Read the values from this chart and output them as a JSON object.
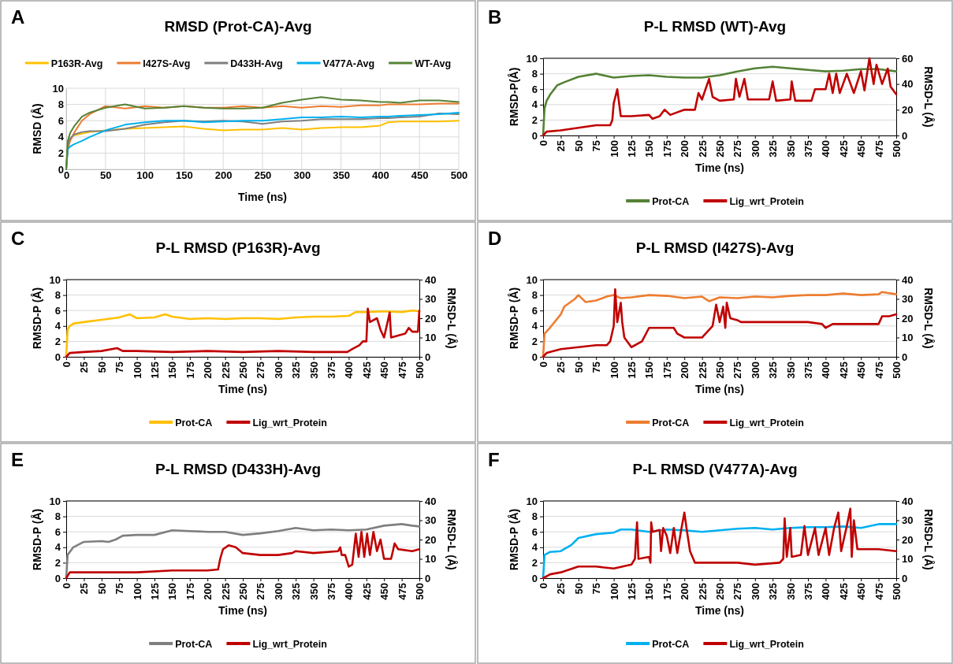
{
  "chart_data": [
    {
      "type": "line",
      "title": "RMSD (Prot-CA)-Avg",
      "xlabel": "Time (ns)",
      "ylabel": "RMSD (Å)",
      "annotations": [
        "A"
      ],
      "xlim": [
        0,
        500
      ],
      "xticks": [
        0,
        50,
        100,
        150,
        200,
        250,
        300,
        350,
        400,
        450,
        500
      ],
      "ylim": [
        0,
        10
      ],
      "yticks": [
        0,
        2,
        4,
        6,
        8,
        10
      ],
      "grid": true,
      "legend": "top",
      "series": [
        {
          "name": "P163R-Avg",
          "color": "#ffc000",
          "x": [
            0,
            2,
            5,
            10,
            20,
            30,
            50,
            75,
            100,
            125,
            150,
            175,
            200,
            225,
            250,
            275,
            300,
            325,
            350,
            375,
            400,
            410,
            425,
            450,
            475,
            500
          ],
          "values": [
            0,
            3,
            3.8,
            4.2,
            4.4,
            4.6,
            4.8,
            5.0,
            5.1,
            5.2,
            5.3,
            5.0,
            4.8,
            4.9,
            4.9,
            5.1,
            4.9,
            5.1,
            5.2,
            5.2,
            5.4,
            5.8,
            5.9,
            5.9,
            5.9,
            6.0
          ]
        },
        {
          "name": "I427S-Avg",
          "color": "#ed7d31",
          "x": [
            0,
            2,
            5,
            10,
            20,
            30,
            50,
            75,
            100,
            125,
            150,
            175,
            200,
            225,
            250,
            275,
            300,
            325,
            350,
            375,
            400,
            410,
            425,
            450,
            475,
            500
          ],
          "values": [
            0,
            2.5,
            3.5,
            4.5,
            6,
            6.8,
            7.8,
            7.5,
            7.8,
            7.6,
            7.8,
            7.6,
            7.6,
            7.8,
            7.6,
            7.8,
            7.6,
            7.8,
            7.7,
            7.9,
            7.9,
            8.0,
            8.0,
            8.0,
            8.1,
            8.1
          ]
        },
        {
          "name": "D433H-Avg",
          "color": "#7f7f7f",
          "x": [
            0,
            2,
            5,
            10,
            20,
            30,
            50,
            75,
            100,
            125,
            150,
            175,
            200,
            225,
            250,
            275,
            300,
            325,
            350,
            375,
            400,
            410,
            425,
            450,
            475,
            500
          ],
          "values": [
            0,
            3,
            3.8,
            4.3,
            4.6,
            4.7,
            4.7,
            5.0,
            5.5,
            5.8,
            6.0,
            5.9,
            6.0,
            5.9,
            5.6,
            5.9,
            6.0,
            6.2,
            6.2,
            6.2,
            6.3,
            6.3,
            6.4,
            6.5,
            6.9,
            6.8
          ]
        },
        {
          "name": "V477A-Avg",
          "color": "#00b0f0",
          "x": [
            0,
            2,
            5,
            10,
            20,
            30,
            50,
            75,
            100,
            125,
            150,
            175,
            200,
            225,
            250,
            275,
            300,
            325,
            350,
            375,
            400,
            410,
            425,
            450,
            475,
            500
          ],
          "values": [
            0,
            2.5,
            2.8,
            3.1,
            3.5,
            4.0,
            4.8,
            5.5,
            5.8,
            6.0,
            6.0,
            5.8,
            5.9,
            6.0,
            6.0,
            6.2,
            6.4,
            6.4,
            6.5,
            6.4,
            6.5,
            6.5,
            6.6,
            6.7,
            6.8,
            7.0
          ]
        },
        {
          "name": "WT-Avg",
          "color": "#548235",
          "x": [
            0,
            2,
            5,
            10,
            20,
            30,
            50,
            75,
            100,
            125,
            150,
            175,
            200,
            225,
            250,
            275,
            300,
            325,
            350,
            375,
            400,
            410,
            425,
            450,
            475,
            500
          ],
          "values": [
            0,
            3.5,
            4.5,
            5.3,
            6.5,
            7.0,
            7.6,
            8.0,
            7.5,
            7.6,
            7.8,
            7.6,
            7.5,
            7.5,
            7.6,
            8.2,
            8.6,
            8.9,
            8.6,
            8.5,
            8.3,
            8.3,
            8.2,
            8.5,
            8.5,
            8.3
          ]
        }
      ]
    },
    {
      "type": "line",
      "title": "P-L RMSD (WT)-Avg",
      "xlabel": "Time (ns)",
      "ylabel": "RMSD-P(Å)",
      "y2label": "RMSD-L (Å)",
      "annotations": [
        "B"
      ],
      "xlim": [
        0,
        500
      ],
      "xticks": [
        0,
        25,
        50,
        75,
        100,
        125,
        150,
        175,
        200,
        225,
        250,
        275,
        300,
        325,
        350,
        375,
        400,
        425,
        450,
        475,
        500
      ],
      "ylim": [
        0,
        10
      ],
      "yticks": [
        0,
        2,
        4,
        6,
        8,
        10
      ],
      "y2lim": [
        0,
        60
      ],
      "y2ticks": [
        0,
        20,
        40,
        60
      ],
      "grid": "y",
      "legend": "bottom",
      "series": [
        {
          "name": "Prot-CA",
          "color": "#548235",
          "x": [
            0,
            2,
            5,
            10,
            20,
            30,
            50,
            75,
            100,
            125,
            150,
            175,
            200,
            225,
            250,
            275,
            300,
            325,
            350,
            375,
            400,
            425,
            450,
            475,
            500
          ],
          "values": [
            0,
            3.5,
            4.5,
            5.3,
            6.5,
            6.9,
            7.6,
            8.0,
            7.5,
            7.7,
            7.8,
            7.6,
            7.5,
            7.5,
            7.8,
            8.3,
            8.7,
            8.9,
            8.7,
            8.5,
            8.3,
            8.4,
            8.6,
            8.6,
            8.3
          ]
        },
        {
          "name": "Lig_wrt_Protein",
          "color": "#c00000",
          "axis": "y2",
          "x": [
            0,
            5,
            25,
            50,
            75,
            95,
            98,
            100,
            105,
            110,
            125,
            150,
            155,
            165,
            172,
            180,
            200,
            215,
            220,
            225,
            235,
            240,
            250,
            270,
            273,
            278,
            285,
            290,
            320,
            325,
            330,
            350,
            352,
            357,
            380,
            385,
            400,
            405,
            410,
            415,
            420,
            430,
            440,
            450,
            455,
            462,
            468,
            472,
            480,
            488,
            492,
            500
          ],
          "values": [
            0,
            3,
            4,
            6,
            8,
            8,
            12,
            25,
            36,
            15,
            15,
            16,
            13,
            15,
            20,
            16,
            20,
            20,
            33,
            28,
            44,
            30,
            27,
            28,
            44,
            30,
            44,
            28,
            28,
            42,
            27,
            28,
            42,
            27,
            27,
            36,
            36,
            48,
            33,
            48,
            33,
            48,
            33,
            50,
            35,
            60,
            40,
            55,
            40,
            52,
            38,
            32
          ]
        }
      ]
    },
    {
      "type": "line",
      "title": "P-L RMSD (P163R)-Avg",
      "xlabel": "Time (ns)",
      "ylabel": "RMSD-P (Å)",
      "y2label": "RMSD-L (Å)",
      "annotations": [
        "C"
      ],
      "xlim": [
        0,
        500
      ],
      "xticks": [
        0,
        25,
        50,
        75,
        100,
        125,
        150,
        175,
        200,
        225,
        250,
        275,
        300,
        325,
        350,
        375,
        400,
        425,
        450,
        475,
        500
      ],
      "ylim": [
        0,
        10
      ],
      "yticks": [
        0,
        2,
        4,
        6,
        8,
        10
      ],
      "y2lim": [
        0,
        40
      ],
      "y2ticks": [
        0,
        10,
        20,
        30,
        40
      ],
      "grid": "y",
      "legend": "bottom",
      "series": [
        {
          "name": "Prot-CA",
          "color": "#ffc000",
          "x": [
            0,
            2,
            5,
            10,
            25,
            50,
            75,
            90,
            100,
            125,
            140,
            150,
            175,
            200,
            225,
            250,
            275,
            300,
            325,
            350,
            375,
            400,
            410,
            425,
            450,
            475,
            490,
            500
          ],
          "values": [
            0,
            3.5,
            4.0,
            4.3,
            4.5,
            4.8,
            5.1,
            5.5,
            5.0,
            5.1,
            5.5,
            5.2,
            4.9,
            5.0,
            4.9,
            5.0,
            5.0,
            4.9,
            5.1,
            5.2,
            5.2,
            5.3,
            5.8,
            5.8,
            5.9,
            5.8,
            6.0,
            5.9
          ]
        },
        {
          "name": "Lig_wrt_Protein",
          "color": "#c00000",
          "axis": "y2",
          "x": [
            0,
            5,
            25,
            50,
            72,
            80,
            100,
            150,
            200,
            250,
            300,
            350,
            398,
            405,
            415,
            420,
            425,
            427,
            430,
            440,
            445,
            450,
            455,
            458,
            460,
            470,
            480,
            485,
            490,
            498,
            500
          ],
          "values": [
            0,
            2,
            2.5,
            3,
            4.5,
            3,
            3,
            2.5,
            3,
            2.5,
            3,
            2.5,
            2.5,
            4,
            6,
            8,
            8,
            25,
            18,
            20,
            14,
            10,
            18,
            23,
            10,
            11,
            12,
            15,
            13,
            13,
            24
          ]
        }
      ]
    },
    {
      "type": "line",
      "title": "P-L RMSD (I427S)-Avg",
      "xlabel": "Time (ns)",
      "ylabel": "RMSD-P (Å)",
      "y2label": "RMSD-L (Å)",
      "annotations": [
        "D"
      ],
      "xlim": [
        0,
        500
      ],
      "xticks": [
        0,
        25,
        50,
        75,
        100,
        125,
        150,
        175,
        200,
        225,
        250,
        275,
        300,
        325,
        350,
        375,
        400,
        425,
        450,
        475,
        500
      ],
      "ylim": [
        0,
        10
      ],
      "yticks": [
        0,
        2,
        4,
        6,
        8,
        10
      ],
      "y2lim": [
        0,
        40
      ],
      "y2ticks": [
        0,
        10,
        20,
        30,
        40
      ],
      "grid": "y",
      "legend": "bottom",
      "series": [
        {
          "name": "Prot-CA",
          "color": "#ed7d31",
          "x": [
            0,
            2,
            10,
            25,
            30,
            45,
            50,
            60,
            75,
            90,
            100,
            110,
            125,
            150,
            175,
            200,
            225,
            235,
            250,
            275,
            300,
            325,
            350,
            375,
            400,
            425,
            450,
            475,
            480,
            500
          ],
          "values": [
            0,
            3,
            3.8,
            5.5,
            6.5,
            7.5,
            8.0,
            7.1,
            7.3,
            7.8,
            8.0,
            7.6,
            7.7,
            8.0,
            7.9,
            7.6,
            7.8,
            7.2,
            7.7,
            7.6,
            7.8,
            7.7,
            7.9,
            8.0,
            8.0,
            8.2,
            8.0,
            8.1,
            8.4,
            8.1
          ]
        },
        {
          "name": "Lig_wrt_Protein",
          "color": "#c00000",
          "axis": "y2",
          "x": [
            0,
            5,
            25,
            50,
            75,
            90,
            95,
            100,
            102,
            105,
            110,
            112,
            115,
            125,
            140,
            150,
            175,
            185,
            190,
            200,
            225,
            230,
            240,
            245,
            250,
            255,
            258,
            260,
            265,
            275,
            280,
            300,
            350,
            375,
            395,
            400,
            410,
            450,
            475,
            480,
            490,
            500
          ],
          "values": [
            0,
            2,
            4,
            5,
            6,
            6,
            8,
            16,
            35,
            18,
            28,
            18,
            10,
            5,
            8,
            15,
            15,
            15,
            12,
            10,
            10,
            12,
            16,
            27,
            18,
            26,
            15,
            28,
            20,
            19,
            18,
            18,
            18,
            18,
            17,
            15,
            17,
            17,
            17,
            21,
            21,
            22
          ]
        }
      ]
    },
    {
      "type": "line",
      "title": "P-L RMSD (D433H)-Avg",
      "xlabel": "Time (ns)",
      "ylabel": "RMSD-P (Å)",
      "y2label": "RMSD-L (Å)",
      "annotations": [
        "E"
      ],
      "xlim": [
        0,
        500
      ],
      "xticks": [
        0,
        25,
        50,
        75,
        100,
        125,
        150,
        175,
        200,
        225,
        250,
        275,
        300,
        325,
        350,
        375,
        400,
        425,
        450,
        475,
        500
      ],
      "ylim": [
        0,
        10
      ],
      "yticks": [
        0,
        2,
        4,
        6,
        8,
        10
      ],
      "y2lim": [
        0,
        40
      ],
      "y2ticks": [
        0,
        10,
        20,
        30,
        40
      ],
      "grid": "y",
      "legend": "bottom",
      "series": [
        {
          "name": "Prot-CA",
          "color": "#7f7f7f",
          "x": [
            0,
            2,
            10,
            25,
            50,
            60,
            70,
            80,
            100,
            125,
            150,
            175,
            200,
            225,
            250,
            275,
            300,
            325,
            350,
            375,
            400,
            425,
            450,
            475,
            490,
            500
          ],
          "values": [
            0,
            3,
            4.0,
            4.7,
            4.8,
            4.7,
            5.0,
            5.5,
            5.6,
            5.6,
            6.2,
            6.1,
            6.0,
            6.0,
            5.6,
            5.8,
            6.1,
            6.5,
            6.2,
            6.3,
            6.2,
            6.3,
            6.8,
            7.0,
            6.8,
            6.7
          ]
        },
        {
          "name": "Lig_wrt_Protein",
          "color": "#c00000",
          "axis": "y2",
          "x": [
            0,
            5,
            50,
            100,
            150,
            200,
            215,
            218,
            222,
            230,
            240,
            250,
            275,
            300,
            320,
            325,
            350,
            385,
            388,
            390,
            395,
            400,
            405,
            410,
            414,
            418,
            422,
            426,
            430,
            435,
            440,
            445,
            450,
            460,
            465,
            470,
            490,
            500
          ],
          "values": [
            0,
            3,
            3,
            3,
            4,
            4,
            4.5,
            10,
            15,
            17,
            16,
            13,
            12,
            12,
            13,
            14,
            13,
            14,
            16,
            12,
            12,
            6,
            7,
            23,
            11,
            24,
            11,
            23,
            12,
            24,
            14,
            20,
            10,
            10,
            18,
            15,
            14,
            15
          ]
        }
      ]
    },
    {
      "type": "line",
      "title": "P-L RMSD (V477A)-Avg",
      "xlabel": "Time (ns)",
      "ylabel": "RMSD-P (Å)",
      "y2label": "RMSD-L (Å)",
      "annotations": [
        "F"
      ],
      "xlim": [
        0,
        500
      ],
      "xticks": [
        0,
        25,
        50,
        75,
        100,
        125,
        150,
        175,
        200,
        225,
        250,
        275,
        300,
        325,
        350,
        375,
        400,
        425,
        450,
        475,
        500
      ],
      "ylim": [
        0,
        10
      ],
      "yticks": [
        0,
        2,
        4,
        6,
        8,
        10
      ],
      "y2lim": [
        0,
        40
      ],
      "y2ticks": [
        0,
        10,
        20,
        30,
        40
      ],
      "grid": "y",
      "legend": "bottom",
      "series": [
        {
          "name": "Prot-CA",
          "color": "#00b0f0",
          "x": [
            0,
            2,
            10,
            25,
            40,
            50,
            75,
            100,
            110,
            125,
            150,
            175,
            200,
            225,
            250,
            275,
            300,
            325,
            350,
            375,
            400,
            425,
            450,
            475,
            500
          ],
          "values": [
            0,
            3,
            3.4,
            3.5,
            4.3,
            5.2,
            5.7,
            5.9,
            6.3,
            6.3,
            6.0,
            6.3,
            6.2,
            6.0,
            6.2,
            6.4,
            6.5,
            6.3,
            6.5,
            6.6,
            6.6,
            6.7,
            6.5,
            7.0,
            7.0
          ]
        },
        {
          "name": "Lig_wrt_Protein",
          "color": "#c00000",
          "axis": "y2",
          "x": [
            0,
            10,
            25,
            50,
            75,
            100,
            125,
            130,
            133,
            135,
            150,
            152,
            153,
            155,
            165,
            167,
            170,
            175,
            180,
            185,
            190,
            195,
            200,
            203,
            208,
            215,
            225,
            275,
            300,
            335,
            340,
            342,
            345,
            350,
            352,
            365,
            370,
            375,
            385,
            390,
            400,
            405,
            412,
            418,
            422,
            430,
            435,
            437,
            440,
            445,
            460,
            475,
            500
          ],
          "values": [
            0,
            2,
            3,
            6,
            6,
            5,
            7,
            10,
            29,
            10,
            11,
            8,
            29,
            24,
            25,
            14,
            26,
            22,
            13,
            26,
            13,
            24,
            34,
            26,
            14,
            8,
            8,
            8,
            7,
            8,
            10,
            31,
            11,
            26,
            11,
            12,
            27,
            12,
            26,
            12,
            26,
            12,
            26,
            34,
            14,
            27,
            36,
            11,
            30,
            15,
            15,
            15,
            14
          ]
        }
      ]
    }
  ]
}
